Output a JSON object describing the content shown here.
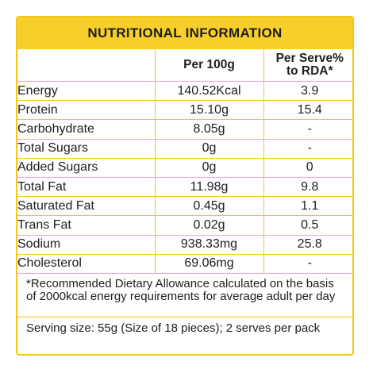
{
  "title": "NUTRITIONAL INFORMATION",
  "columns": {
    "nutrient": "",
    "per100": "Per 100g",
    "per_serve": "Per Serve%\nto RDA*"
  },
  "rows": [
    {
      "name": "Energy",
      "per100": "140.52Kcal",
      "per_serve": "3.9"
    },
    {
      "name": "Protein",
      "per100": "15.10g",
      "per_serve": "15.4"
    },
    {
      "name": "Carbohydrate",
      "per100": "8.05g",
      "per_serve": "-"
    },
    {
      "name": "Total Sugars",
      "per100": "0g",
      "per_serve": "-"
    },
    {
      "name": "Added Sugars",
      "per100": "0g",
      "per_serve": "0"
    },
    {
      "name": "Total Fat",
      "per100": "11.98g",
      "per_serve": "9.8"
    },
    {
      "name": "Saturated Fat",
      "per100": "0.45g",
      "per_serve": "1.1"
    },
    {
      "name": "Trans Fat",
      "per100": "0.02g",
      "per_serve": "0.5"
    },
    {
      "name": "Sodium",
      "per100": "938.33mg",
      "per_serve": "25.8"
    },
    {
      "name": "Cholesterol",
      "per100": "69.06mg",
      "per_serve": "-"
    }
  ],
  "footnote": "*Recommended Dietary Allowance calculated on the basis of 2000kcal energy requirements for average adult per day",
  "serving": "Serving size: 55g (Size of 18 pieces); 2 serves per pack",
  "colors": {
    "accent": "#f8cf2a",
    "border": "#f5c518",
    "text": "#1e1e1e"
  }
}
